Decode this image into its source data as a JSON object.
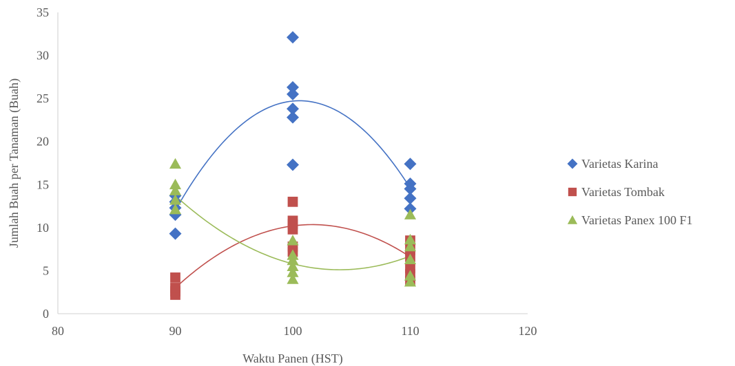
{
  "chart_data": {
    "type": "scatter",
    "xlabel": "Waktu Panen (HST)",
    "ylabel": "Jumlah Buah per Tanaman (Buah)",
    "xlim": [
      80,
      120
    ],
    "ylim": [
      0,
      35
    ],
    "x_ticks": [
      80,
      90,
      100,
      110,
      120
    ],
    "y_ticks": [
      0,
      5,
      10,
      15,
      20,
      25,
      30,
      35
    ],
    "grid": false,
    "legend_position": "right",
    "series": [
      {
        "name": "Varietas Karina",
        "marker": "diamond",
        "color": "#4472C4",
        "points": [
          [
            90,
            9.3
          ],
          [
            90,
            11.5
          ],
          [
            90,
            12.3
          ],
          [
            90,
            13.0
          ],
          [
            90,
            13.7
          ],
          [
            100,
            17.3
          ],
          [
            100,
            22.8
          ],
          [
            100,
            23.8
          ],
          [
            100,
            25.5
          ],
          [
            100,
            26.3
          ],
          [
            100,
            32.1
          ],
          [
            110,
            12.2
          ],
          [
            110,
            13.4
          ],
          [
            110,
            14.5
          ],
          [
            110,
            15.1
          ],
          [
            110,
            17.4
          ]
        ],
        "trend": {
          "type": "polynomial",
          "points": [
            [
              90,
              12.0
            ],
            [
              100,
              24.7
            ],
            [
              110,
              14.6
            ]
          ]
        }
      },
      {
        "name": "Varietas Tombak",
        "marker": "square",
        "color": "#C0504D",
        "points": [
          [
            90,
            2.2
          ],
          [
            90,
            2.6
          ],
          [
            90,
            3.0
          ],
          [
            90,
            4.2
          ],
          [
            100,
            7.2
          ],
          [
            100,
            7.8
          ],
          [
            100,
            9.8
          ],
          [
            100,
            10.4
          ],
          [
            100,
            10.8
          ],
          [
            100,
            13.0
          ],
          [
            110,
            3.8
          ],
          [
            110,
            4.6
          ],
          [
            110,
            5.3
          ],
          [
            110,
            6.6
          ],
          [
            110,
            7.4
          ],
          [
            110,
            8.5
          ]
        ],
        "trend": {
          "type": "polynomial",
          "points": [
            [
              90,
              3.0
            ],
            [
              100,
              10.2
            ],
            [
              110,
              6.6
            ]
          ]
        }
      },
      {
        "name": "Varietas Panex 100 F1",
        "marker": "triangle",
        "color": "#9BBB59",
        "points": [
          [
            90,
            12.1
          ],
          [
            90,
            13.2
          ],
          [
            90,
            14.3
          ],
          [
            90,
            15.0
          ],
          [
            90,
            17.4
          ],
          [
            100,
            4.0
          ],
          [
            100,
            4.8
          ],
          [
            100,
            5.5
          ],
          [
            100,
            6.2
          ],
          [
            100,
            6.8
          ],
          [
            100,
            8.5
          ],
          [
            110,
            3.7
          ],
          [
            110,
            4.4
          ],
          [
            110,
            6.3
          ],
          [
            110,
            7.8
          ],
          [
            110,
            8.6
          ],
          [
            110,
            11.5
          ]
        ],
        "trend": {
          "type": "polynomial",
          "points": [
            [
              90,
              13.7
            ],
            [
              100,
              5.8
            ],
            [
              110,
              6.7
            ]
          ]
        }
      }
    ]
  }
}
